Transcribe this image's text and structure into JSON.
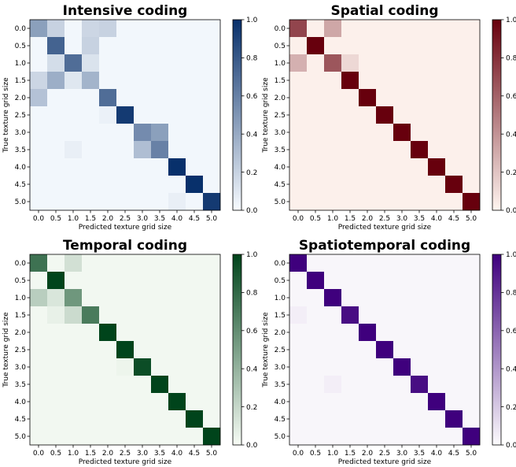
{
  "chart_data": [
    {
      "type": "heatmap",
      "title": "Intensive coding",
      "colormap": "Blues",
      "colors": {
        "low": "#f7fbff",
        "high": "#08306b"
      },
      "xlabel": "Predicted texture grid size",
      "ylabel": "True texture grid size",
      "categories": [
        "0.0",
        "0.5",
        "1.0",
        "1.5",
        "2.0",
        "2.5",
        "3.0",
        "3.5",
        "4.0",
        "4.5",
        "5.0"
      ],
      "colorbar_ticks": [
        "0.0",
        "0.2",
        "0.4",
        "0.6",
        "0.8",
        "1.0"
      ],
      "clim": [
        0,
        1
      ],
      "values": [
        [
          0.45,
          0.2,
          0.02,
          0.18,
          0.2,
          0.02,
          0.02,
          0.02,
          0.02,
          0.02,
          0.02
        ],
        [
          0.02,
          0.75,
          0.02,
          0.2,
          0.02,
          0.02,
          0.02,
          0.02,
          0.02,
          0.02,
          0.02
        ],
        [
          0.02,
          0.15,
          0.7,
          0.12,
          0.02,
          0.02,
          0.02,
          0.02,
          0.02,
          0.02,
          0.02
        ],
        [
          0.18,
          0.38,
          0.1,
          0.35,
          0.02,
          0.02,
          0.02,
          0.02,
          0.02,
          0.02,
          0.02
        ],
        [
          0.28,
          0.02,
          0.02,
          0.02,
          0.7,
          0.02,
          0.02,
          0.02,
          0.02,
          0.02,
          0.02
        ],
        [
          0.02,
          0.02,
          0.02,
          0.02,
          0.05,
          0.95,
          0.02,
          0.02,
          0.02,
          0.02,
          0.02
        ],
        [
          0.02,
          0.02,
          0.02,
          0.02,
          0.02,
          0.02,
          0.55,
          0.45,
          0.02,
          0.02,
          0.02
        ],
        [
          0.02,
          0.02,
          0.06,
          0.02,
          0.02,
          0.02,
          0.3,
          0.6,
          0.02,
          0.02,
          0.02
        ],
        [
          0.02,
          0.02,
          0.02,
          0.02,
          0.02,
          0.02,
          0.02,
          0.02,
          1.0,
          0.02,
          0.02
        ],
        [
          0.02,
          0.02,
          0.02,
          0.02,
          0.02,
          0.02,
          0.02,
          0.02,
          0.02,
          1.0,
          0.02
        ],
        [
          0.02,
          0.02,
          0.02,
          0.02,
          0.02,
          0.02,
          0.02,
          0.02,
          0.06,
          0.02,
          0.95
        ]
      ]
    },
    {
      "type": "heatmap",
      "title": "Spatial coding",
      "colormap": "Reds",
      "colors": {
        "low": "#fff5f0",
        "high": "#67000d"
      },
      "xlabel": "Predicted texture grid size",
      "ylabel": "True texture grid size",
      "categories": [
        "0.0",
        "0.5",
        "1.0",
        "1.5",
        "2.0",
        "2.5",
        "3.0",
        "3.5",
        "4.0",
        "4.5",
        "5.0"
      ],
      "colorbar_ticks": [
        "0.0",
        "0.2",
        "0.4",
        "0.6",
        "0.8",
        "1.0"
      ],
      "clim": [
        0,
        1
      ],
      "values": [
        [
          0.72,
          0.02,
          0.32,
          0.02,
          0.02,
          0.02,
          0.02,
          0.02,
          0.02,
          0.02,
          0.02
        ],
        [
          0.02,
          1.0,
          0.02,
          0.02,
          0.02,
          0.02,
          0.02,
          0.02,
          0.02,
          0.02,
          0.02
        ],
        [
          0.28,
          0.02,
          0.65,
          0.12,
          0.02,
          0.02,
          0.02,
          0.02,
          0.02,
          0.02,
          0.02
        ],
        [
          0.02,
          0.02,
          0.02,
          1.0,
          0.02,
          0.02,
          0.02,
          0.02,
          0.02,
          0.02,
          0.02
        ],
        [
          0.02,
          0.02,
          0.02,
          0.02,
          1.0,
          0.02,
          0.02,
          0.02,
          0.02,
          0.02,
          0.02
        ],
        [
          0.02,
          0.02,
          0.02,
          0.02,
          0.02,
          1.0,
          0.02,
          0.02,
          0.02,
          0.02,
          0.02
        ],
        [
          0.02,
          0.02,
          0.02,
          0.02,
          0.02,
          0.02,
          1.0,
          0.02,
          0.02,
          0.02,
          0.02
        ],
        [
          0.02,
          0.02,
          0.02,
          0.02,
          0.02,
          0.02,
          0.02,
          1.0,
          0.02,
          0.02,
          0.02
        ],
        [
          0.02,
          0.02,
          0.02,
          0.02,
          0.02,
          0.02,
          0.02,
          0.02,
          1.0,
          0.02,
          0.02
        ],
        [
          0.02,
          0.02,
          0.02,
          0.02,
          0.02,
          0.02,
          0.02,
          0.02,
          0.02,
          1.0,
          0.02
        ],
        [
          0.02,
          0.02,
          0.02,
          0.02,
          0.02,
          0.02,
          0.02,
          0.02,
          0.02,
          0.02,
          1.0
        ]
      ]
    },
    {
      "type": "heatmap",
      "title": "Temporal coding",
      "colormap": "Greens",
      "colors": {
        "low": "#f7fcf5",
        "high": "#00441b"
      },
      "xlabel": "Predicted texture grid size",
      "ylabel": "True texture grid size",
      "categories": [
        "0.0",
        "0.5",
        "1.0",
        "1.5",
        "2.0",
        "2.5",
        "3.0",
        "3.5",
        "4.0",
        "4.5",
        "5.0"
      ],
      "colorbar_ticks": [
        "0.0",
        "0.2",
        "0.4",
        "0.6",
        "0.8",
        "1.0"
      ],
      "clim": [
        0,
        1
      ],
      "values": [
        [
          0.75,
          0.02,
          0.15,
          0.02,
          0.02,
          0.02,
          0.02,
          0.02,
          0.02,
          0.02,
          0.02
        ],
        [
          0.02,
          1.0,
          0.02,
          0.02,
          0.02,
          0.02,
          0.02,
          0.02,
          0.02,
          0.02,
          0.02
        ],
        [
          0.25,
          0.12,
          0.55,
          0.02,
          0.02,
          0.02,
          0.02,
          0.02,
          0.02,
          0.02,
          0.02
        ],
        [
          0.02,
          0.06,
          0.18,
          0.7,
          0.02,
          0.02,
          0.02,
          0.02,
          0.02,
          0.02,
          0.02
        ],
        [
          0.02,
          0.02,
          0.02,
          0.02,
          1.0,
          0.02,
          0.02,
          0.02,
          0.02,
          0.02,
          0.02
        ],
        [
          0.02,
          0.02,
          0.02,
          0.02,
          0.02,
          1.0,
          0.02,
          0.02,
          0.02,
          0.02,
          0.02
        ],
        [
          0.02,
          0.02,
          0.02,
          0.02,
          0.02,
          0.04,
          0.95,
          0.02,
          0.02,
          0.02,
          0.02
        ],
        [
          0.02,
          0.02,
          0.02,
          0.02,
          0.02,
          0.02,
          0.02,
          1.0,
          0.02,
          0.02,
          0.02
        ],
        [
          0.02,
          0.02,
          0.02,
          0.02,
          0.02,
          0.02,
          0.02,
          0.02,
          1.0,
          0.02,
          0.02
        ],
        [
          0.02,
          0.02,
          0.02,
          0.02,
          0.02,
          0.02,
          0.02,
          0.02,
          0.02,
          1.0,
          0.02
        ],
        [
          0.02,
          0.02,
          0.02,
          0.02,
          0.02,
          0.02,
          0.02,
          0.02,
          0.02,
          0.02,
          1.0
        ]
      ]
    },
    {
      "type": "heatmap",
      "title": "Spatiotemporal coding",
      "colormap": "Purples",
      "colors": {
        "low": "#fcfbfd",
        "high": "#3f007d"
      },
      "xlabel": "Predicted texture grid size",
      "ylabel": "True texture grid size",
      "categories": [
        "0.0",
        "0.5",
        "1.0",
        "1.5",
        "2.0",
        "2.5",
        "3.0",
        "3.5",
        "4.0",
        "4.5",
        "5.0"
      ],
      "colorbar_ticks": [
        "0.0",
        "0.2",
        "0.4",
        "0.6",
        "0.8",
        "1.0"
      ],
      "clim": [
        0,
        1
      ],
      "values": [
        [
          1.0,
          0.02,
          0.02,
          0.02,
          0.02,
          0.02,
          0.02,
          0.02,
          0.02,
          0.02,
          0.02
        ],
        [
          0.02,
          1.0,
          0.02,
          0.02,
          0.02,
          0.02,
          0.02,
          0.02,
          0.02,
          0.02,
          0.02
        ],
        [
          0.02,
          0.02,
          1.0,
          0.02,
          0.02,
          0.02,
          0.02,
          0.02,
          0.02,
          0.02,
          0.02
        ],
        [
          0.05,
          0.02,
          0.02,
          0.95,
          0.02,
          0.02,
          0.02,
          0.02,
          0.02,
          0.02,
          0.02
        ],
        [
          0.02,
          0.02,
          0.02,
          0.02,
          1.0,
          0.02,
          0.02,
          0.02,
          0.02,
          0.02,
          0.02
        ],
        [
          0.02,
          0.02,
          0.02,
          0.02,
          0.02,
          1.0,
          0.02,
          0.02,
          0.02,
          0.02,
          0.02
        ],
        [
          0.02,
          0.02,
          0.02,
          0.02,
          0.02,
          0.02,
          1.0,
          0.02,
          0.02,
          0.02,
          0.02
        ],
        [
          0.02,
          0.02,
          0.05,
          0.02,
          0.02,
          0.02,
          0.02,
          0.95,
          0.02,
          0.02,
          0.02
        ],
        [
          0.02,
          0.02,
          0.02,
          0.02,
          0.02,
          0.02,
          0.02,
          0.02,
          1.0,
          0.02,
          0.02
        ],
        [
          0.02,
          0.02,
          0.02,
          0.02,
          0.02,
          0.02,
          0.02,
          0.02,
          0.02,
          1.0,
          0.02
        ],
        [
          0.02,
          0.02,
          0.02,
          0.02,
          0.02,
          0.02,
          0.02,
          0.02,
          0.02,
          0.02,
          1.0
        ]
      ]
    }
  ]
}
